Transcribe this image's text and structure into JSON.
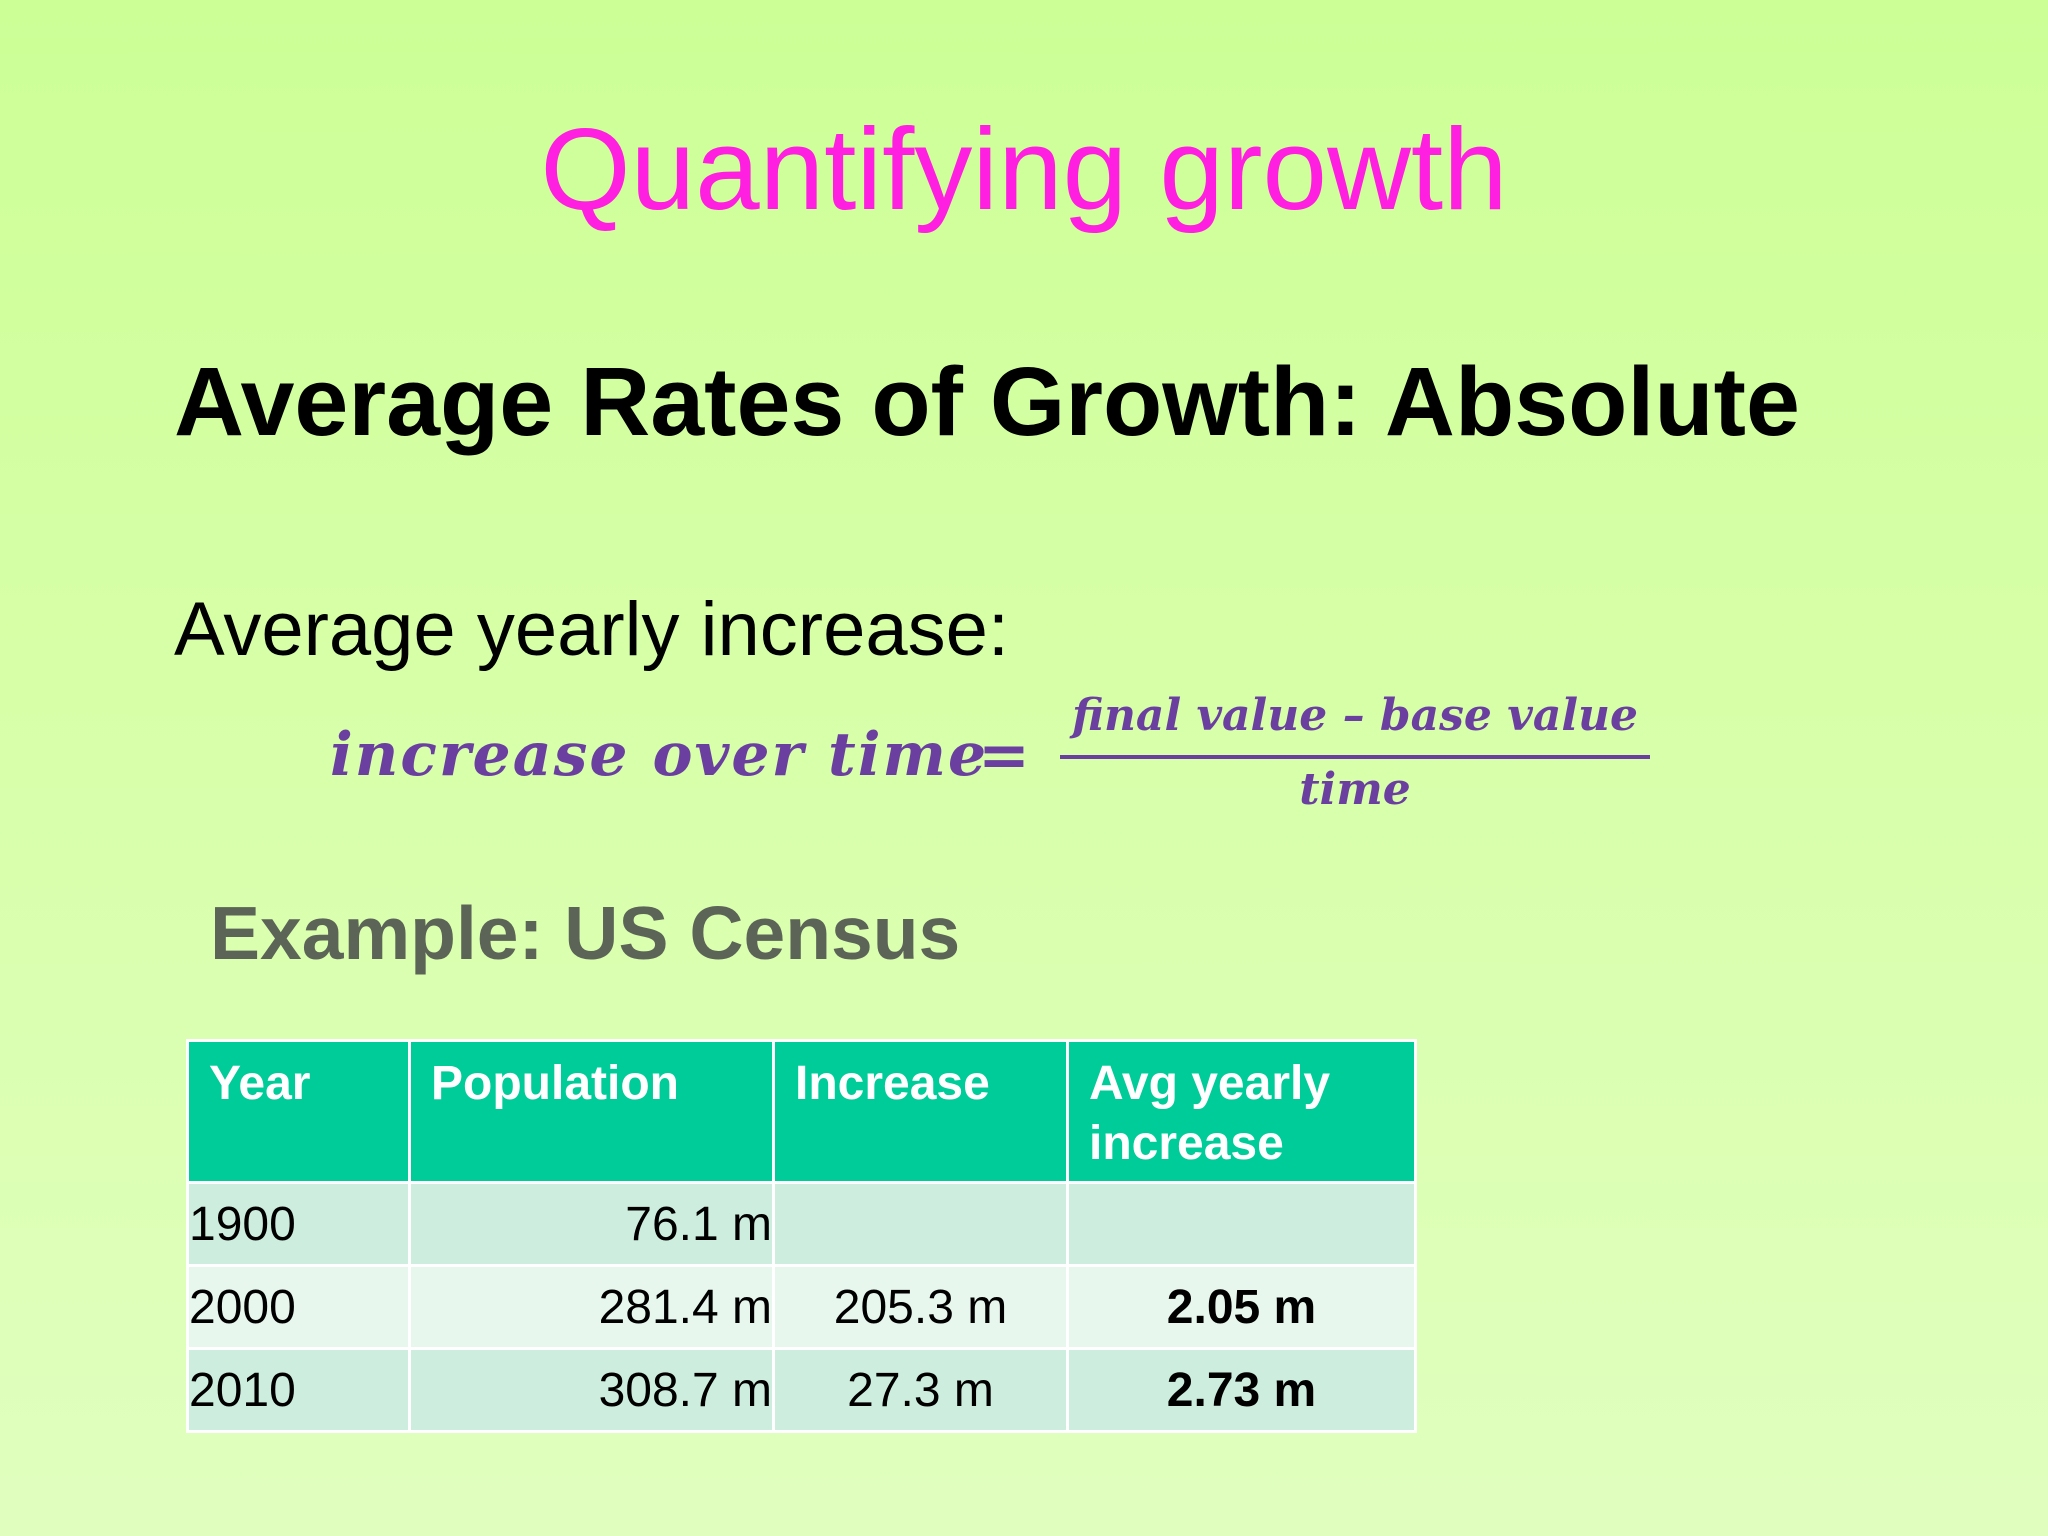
{
  "slide": {
    "title": "Quantifying growth",
    "subtitle": "Average Rates of Growth: Absolute",
    "intro": "Average yearly increase:",
    "formula": {
      "lhs": "increase over time",
      "equals": "=",
      "numerator": "final value – base value",
      "denominator": "time"
    },
    "example_heading": "Example: US Census",
    "table": {
      "headers": [
        "Year",
        "Population",
        "Increase",
        "Avg yearly increase"
      ],
      "rows": [
        {
          "year": "1900",
          "population": "76.1  m",
          "increase": "",
          "avg": ""
        },
        {
          "year": "2000",
          "population": "281.4 m",
          "increase": "205.3 m",
          "avg": "2.05 m"
        },
        {
          "year": "2010",
          "population": "308.7 m",
          "increase": "27.3 m",
          "avg": "2.73 m"
        }
      ]
    }
  },
  "colors": {
    "title": "#ff1fe0",
    "formula": "#6a3fa0",
    "table_header": "#00cc99",
    "example_heading": "#5c6357"
  }
}
